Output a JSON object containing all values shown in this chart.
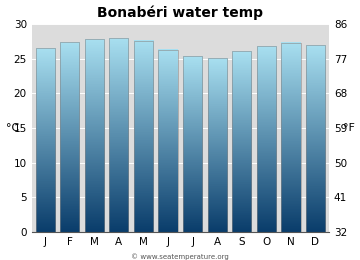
{
  "title": "Bonabéri water temp",
  "months": [
    "J",
    "F",
    "M",
    "A",
    "M",
    "J",
    "J",
    "A",
    "S",
    "O",
    "N",
    "D"
  ],
  "temps_c": [
    26.5,
    27.4,
    27.8,
    28.0,
    27.6,
    26.3,
    25.4,
    25.1,
    26.1,
    26.8,
    27.3,
    26.9
  ],
  "ylim_c": [
    0,
    30
  ],
  "yticks_c": [
    0,
    5,
    10,
    15,
    20,
    25,
    30
  ],
  "yticks_f": [
    32,
    41,
    50,
    59,
    68,
    77,
    86
  ],
  "ylabel_left": "°C",
  "ylabel_right": "°F",
  "bar_color_top": "#a8dff0",
  "bar_color_bottom": "#0a3d6b",
  "bar_edge_color": "#888888",
  "background_color": "#dcdcdc",
  "fig_background": "#ffffff",
  "title_fontsize": 10,
  "tick_fontsize": 7.5,
  "label_fontsize": 8,
  "watermark": "© www.seatemperature.org",
  "bar_width": 0.78
}
